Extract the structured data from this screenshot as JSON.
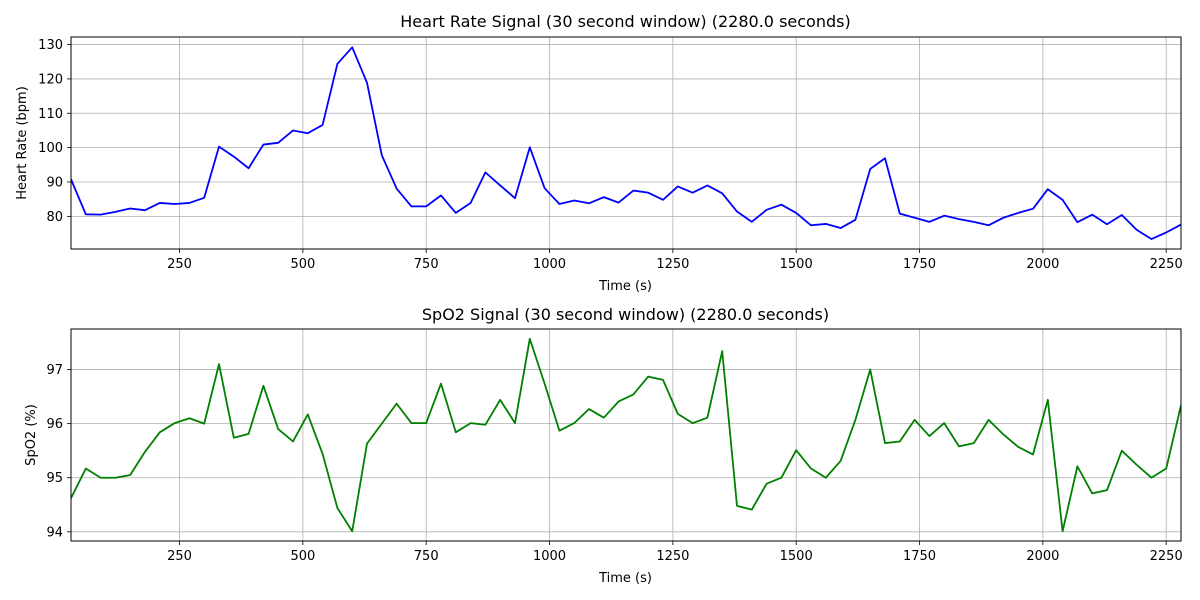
{
  "chart_data": [
    {
      "type": "line",
      "title": "Heart Rate Signal (30 second window) (2280.0 seconds)",
      "xlabel": "Time (s)",
      "ylabel": "Heart Rate (bpm)",
      "xlim": [
        30,
        2280
      ],
      "ylim": [
        70.5,
        132.2
      ],
      "xticks": [
        250,
        500,
        750,
        1000,
        1250,
        1500,
        1750,
        2000,
        2250
      ],
      "yticks": [
        80,
        90,
        100,
        110,
        120,
        130
      ],
      "xtick_labels": [
        "250",
        "500",
        "750",
        "1000",
        "1250",
        "1500",
        "1750",
        "2000",
        "2250"
      ],
      "ytick_labels": [
        "80",
        "90",
        "100",
        "110",
        "120",
        "130"
      ],
      "grid": true,
      "series": [
        {
          "color": "#0000ff",
          "x": [
            30,
            60,
            90,
            120,
            150,
            180,
            210,
            240,
            270,
            300,
            330,
            360,
            390,
            420,
            450,
            480,
            510,
            540,
            570,
            600,
            630,
            660,
            690,
            720,
            750,
            780,
            810,
            840,
            870,
            900,
            930,
            960,
            990,
            1020,
            1050,
            1080,
            1110,
            1140,
            1170,
            1200,
            1230,
            1260,
            1290,
            1320,
            1350,
            1380,
            1410,
            1440,
            1470,
            1500,
            1530,
            1560,
            1590,
            1620,
            1650,
            1680,
            1710,
            1740,
            1770,
            1800,
            1830,
            1860,
            1890,
            1920,
            1950,
            1980,
            2010,
            2040,
            2070,
            2100,
            2130,
            2160,
            2190,
            2220,
            2250,
            2280
          ],
          "y": [
            90.8,
            80.6,
            80.5,
            81.3,
            82.3,
            81.8,
            83.9,
            83.6,
            83.9,
            85.4,
            100.3,
            97.4,
            94.0,
            100.9,
            101.4,
            105.0,
            104.2,
            106.6,
            124.4,
            129.2,
            118.9,
            97.8,
            88.1,
            82.9,
            82.9,
            86.1,
            81.0,
            83.9,
            92.8,
            89.0,
            85.3,
            100.1,
            88.2,
            83.6,
            84.6,
            83.8,
            85.6,
            84.0,
            87.5,
            86.9,
            84.8,
            88.7,
            86.9,
            89.0,
            86.7,
            81.4,
            78.4,
            81.9,
            83.4,
            81.0,
            77.4,
            77.8,
            76.6,
            79.0,
            93.8,
            96.9,
            80.8,
            79.6,
            78.4,
            80.2,
            79.2,
            78.4,
            77.4,
            79.6,
            81.0,
            82.2,
            87.9,
            84.8,
            78.3,
            80.5,
            77.7,
            80.4,
            76.1,
            73.4,
            75.3,
            77.6
          ]
        }
      ]
    },
    {
      "type": "line",
      "title": "SpO2 Signal (30 second window) (2280.0 seconds)",
      "xlabel": "Time (s)",
      "ylabel": "SpO2 (%)",
      "xlim": [
        30,
        2280
      ],
      "ylim": [
        93.83,
        97.75
      ],
      "xticks": [
        250,
        500,
        750,
        1000,
        1250,
        1500,
        1750,
        2000,
        2250
      ],
      "yticks": [
        94,
        95,
        96,
        97
      ],
      "xtick_labels": [
        "250",
        "500",
        "750",
        "1000",
        "1250",
        "1500",
        "1750",
        "2000",
        "2250"
      ],
      "ytick_labels": [
        "94",
        "95",
        "96",
        "97"
      ],
      "grid": true,
      "series": [
        {
          "color": "#008000",
          "x": [
            30,
            60,
            90,
            120,
            150,
            180,
            210,
            240,
            270,
            300,
            330,
            360,
            390,
            420,
            450,
            480,
            510,
            540,
            570,
            600,
            630,
            660,
            690,
            720,
            750,
            780,
            810,
            840,
            870,
            900,
            930,
            960,
            990,
            1020,
            1050,
            1080,
            1110,
            1140,
            1170,
            1200,
            1230,
            1260,
            1290,
            1320,
            1350,
            1380,
            1410,
            1440,
            1470,
            1500,
            1530,
            1560,
            1590,
            1620,
            1650,
            1680,
            1710,
            1740,
            1770,
            1800,
            1830,
            1860,
            1890,
            1920,
            1950,
            1980,
            2010,
            2040,
            2070,
            2100,
            2130,
            2160,
            2190,
            2220,
            2250,
            2280
          ],
          "y": [
            94.62,
            95.17,
            95.0,
            95.0,
            95.05,
            95.48,
            95.84,
            96.01,
            96.1,
            96.0,
            97.1,
            95.74,
            95.81,
            96.7,
            95.9,
            95.67,
            96.17,
            95.44,
            94.44,
            94.01,
            95.63,
            96.0,
            96.37,
            96.01,
            96.01,
            96.74,
            95.84,
            96.01,
            95.98,
            96.44,
            96.01,
            97.57,
            96.74,
            95.87,
            96.01,
            96.27,
            96.11,
            96.41,
            96.54,
            96.87,
            96.81,
            96.18,
            96.01,
            96.11,
            97.34,
            94.48,
            94.41,
            94.89,
            95.0,
            95.51,
            95.17,
            95.0,
            95.31,
            96.07,
            97.0,
            95.64,
            95.67,
            96.07,
            95.77,
            96.01,
            95.58,
            95.64,
            96.07,
            95.8,
            95.57,
            95.43,
            96.44,
            94.01,
            95.21,
            94.71,
            94.77,
            95.5,
            95.24,
            95.0,
            95.17,
            96.34
          ]
        }
      ]
    }
  ]
}
